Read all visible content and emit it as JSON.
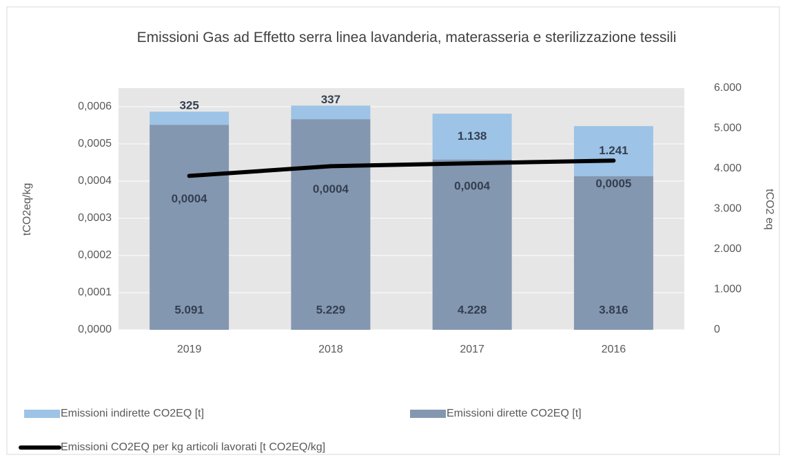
{
  "chart_data": {
    "type": "bar",
    "title": "Emissioni Gas ad Effetto serra linea lavanderia, materasseria e sterilizzazione tessili",
    "y_label": "tCO2eq/kg",
    "y2_label": "tCO2 eq",
    "categories": [
      "2019",
      "2018",
      "2017",
      "2016"
    ],
    "series": [
      {
        "name": "Emissioni indirette CO2EQ [t]",
        "type": "bar",
        "axis": "y2",
        "color": "#9dc3e6",
        "values": [
          325,
          337,
          1138,
          1241
        ],
        "value_labels": [
          "325",
          "337",
          "1.138",
          "1.241"
        ]
      },
      {
        "name": "Emissioni dirette CO2EQ [t]",
        "type": "bar",
        "axis": "y2",
        "color": "#8497b0",
        "values": [
          5091,
          5229,
          4228,
          3816
        ],
        "value_labels": [
          "5.091",
          "5.229",
          "4.228",
          "3.816"
        ]
      },
      {
        "name": "Emissioni CO2EQ per kg articoli lavorati [t CO2EQ/kg]",
        "type": "line",
        "axis": "y",
        "color": "#000000",
        "values": [
          0.000414,
          0.00044,
          0.000448,
          0.000455
        ],
        "value_labels": [
          "0,0004",
          "0,0004",
          "0,0004",
          "0,0005"
        ]
      }
    ],
    "ylim": [
      0,
      0.00065
    ],
    "yticks": [
      {
        "value": 0,
        "label": "0,0000"
      },
      {
        "value": 0.0001,
        "label": "0,0001"
      },
      {
        "value": 0.0002,
        "label": "0,0002"
      },
      {
        "value": 0.0003,
        "label": "0,0003"
      },
      {
        "value": 0.0004,
        "label": "0,0004"
      },
      {
        "value": 0.0005,
        "label": "0,0005"
      },
      {
        "value": 0.0006,
        "label": "0,0006"
      }
    ],
    "y2lim": [
      0,
      6000
    ],
    "y2ticks": [
      0,
      {
        "value": 1000,
        "label": "1.000"
      },
      {
        "value": 2000,
        "label": "2.000"
      },
      {
        "value": 3000,
        "label": "3.000"
      },
      {
        "value": 4000,
        "label": "4.000"
      },
      {
        "value": 5000,
        "label": "5.000"
      },
      {
        "value": 6000,
        "label": "6.000"
      }
    ],
    "grid": true
  }
}
